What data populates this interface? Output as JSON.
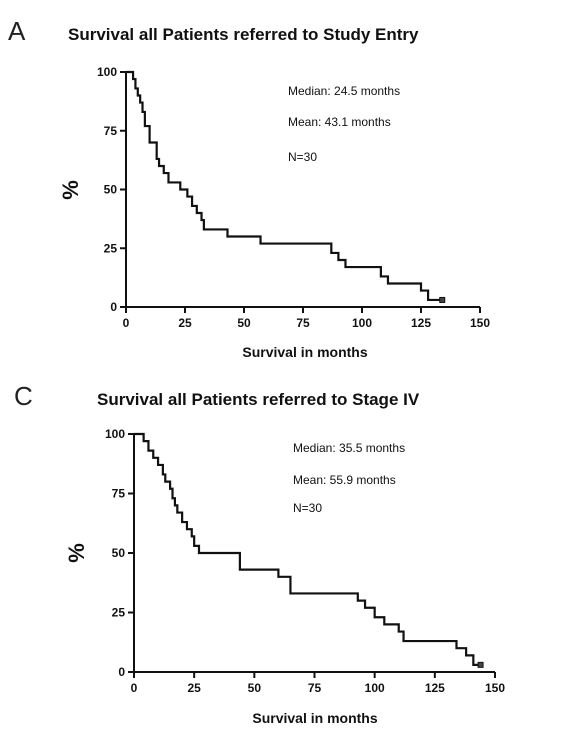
{
  "chart_data": [
    {
      "type": "line",
      "panel": "A",
      "title": "Survival all Patients referred to Study Entry",
      "xlabel": "Survival in months",
      "ylabel": "%",
      "xlim": [
        0,
        150
      ],
      "ylim": [
        0,
        100
      ],
      "xticks": [
        0,
        25,
        50,
        75,
        100,
        125,
        150
      ],
      "yticks": [
        0,
        25,
        50,
        75,
        100
      ],
      "annotations": [
        "Median: 24.5 months",
        "Mean: 43.1 months",
        "N=30"
      ],
      "series": [
        {
          "x": [
            0,
            2,
            3,
            4,
            5,
            6,
            7,
            8,
            10,
            13,
            14,
            16,
            18,
            20,
            23,
            26,
            28,
            30,
            32,
            33,
            40,
            43,
            57,
            80,
            87,
            90,
            93,
            97,
            108,
            111,
            125,
            128,
            134
          ],
          "y": [
            100,
            100,
            97,
            93,
            90,
            87,
            83,
            77,
            70,
            63,
            60,
            57,
            53,
            53,
            50,
            47,
            43,
            40,
            37,
            33,
            33,
            30,
            27,
            27,
            23,
            20,
            17,
            17,
            13,
            10,
            7,
            3,
            3
          ]
        }
      ]
    },
    {
      "type": "line",
      "panel": "C",
      "title": "Survival all Patients referred to Stage IV",
      "xlabel": "Survival in months",
      "ylabel": "%",
      "xlim": [
        0,
        150
      ],
      "ylim": [
        0,
        100
      ],
      "xticks": [
        0,
        25,
        50,
        75,
        100,
        125,
        150
      ],
      "yticks": [
        0,
        25,
        50,
        75,
        100
      ],
      "annotations": [
        "Median: 35.5 months",
        "Mean: 55.9 months",
        "N=30"
      ],
      "series": [
        {
          "x": [
            0,
            3,
            4,
            6,
            8,
            10,
            12,
            13,
            15,
            16,
            17,
            18,
            20,
            22,
            24,
            25,
            27,
            44,
            60,
            65,
            93,
            96,
            100,
            104,
            110,
            112,
            134,
            138,
            141,
            143,
            144
          ],
          "y": [
            100,
            100,
            97,
            93,
            90,
            87,
            83,
            80,
            77,
            73,
            70,
            67,
            63,
            60,
            57,
            53,
            50,
            43,
            40,
            33,
            30,
            27,
            23,
            20,
            17,
            13,
            10,
            7,
            3,
            3,
            3
          ]
        }
      ]
    }
  ]
}
